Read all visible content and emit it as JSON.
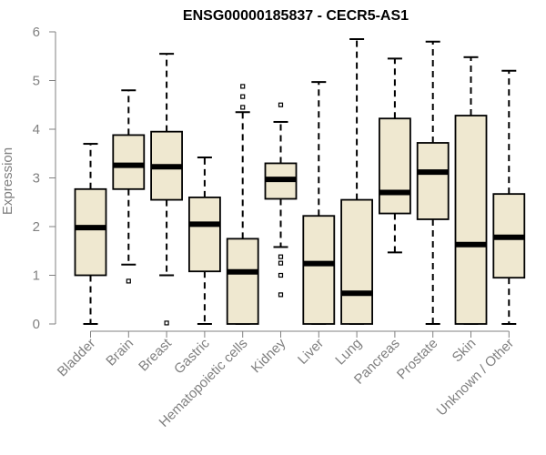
{
  "chart_data": {
    "type": "box",
    "title": "ENSG00000185837 - CECR5-AS1",
    "xlabel": "",
    "ylabel": "Expression",
    "ylim": [
      0,
      6
    ],
    "yticks": [
      0,
      1,
      2,
      3,
      4,
      5,
      6
    ],
    "box_color": "#efe8d0",
    "stroke_color": "#000000",
    "axis_color": "#808080",
    "categories": [
      "Bladder",
      "Brain",
      "Breast",
      "Gastric",
      "Hematopoietic cells",
      "Kidney",
      "Liver",
      "Lung",
      "Pancreas",
      "Prostate",
      "Skin",
      "Unknown / Other"
    ],
    "boxes": [
      {
        "name": "Bladder",
        "min": 0,
        "q1": 1.0,
        "median": 1.98,
        "q3": 2.77,
        "max": 3.7,
        "outliers": []
      },
      {
        "name": "Brain",
        "min": 1.22,
        "q1": 2.77,
        "median": 3.26,
        "q3": 3.88,
        "max": 4.8,
        "outliers": [
          0.88
        ]
      },
      {
        "name": "Breast",
        "min": 1.0,
        "q1": 2.55,
        "median": 3.23,
        "q3": 3.95,
        "max": 5.55,
        "outliers": [
          0.02
        ]
      },
      {
        "name": "Gastric",
        "min": 0,
        "q1": 1.08,
        "median": 2.05,
        "q3": 2.6,
        "max": 3.42,
        "outliers": []
      },
      {
        "name": "Hematopoietic cells",
        "min": 0,
        "q1": 0,
        "median": 1.07,
        "q3": 1.75,
        "max": 4.35,
        "outliers": [
          4.45,
          4.67,
          4.88
        ]
      },
      {
        "name": "Kidney",
        "min": 1.58,
        "q1": 2.57,
        "median": 2.97,
        "q3": 3.3,
        "max": 4.15,
        "outliers": [
          4.5,
          1.38,
          1.25,
          1.0,
          0.6
        ]
      },
      {
        "name": "Liver",
        "min": 0,
        "q1": 0,
        "median": 1.24,
        "q3": 2.22,
        "max": 4.97,
        "outliers": []
      },
      {
        "name": "Lung",
        "min": 0,
        "q1": 0,
        "median": 0.63,
        "q3": 2.55,
        "max": 5.85,
        "outliers": []
      },
      {
        "name": "Pancreas",
        "min": 1.47,
        "q1": 2.27,
        "median": 2.7,
        "q3": 4.22,
        "max": 5.45,
        "outliers": []
      },
      {
        "name": "Prostate",
        "min": 0,
        "q1": 2.15,
        "median": 3.12,
        "q3": 3.72,
        "max": 5.8,
        "outliers": []
      },
      {
        "name": "Skin",
        "min": 0,
        "q1": 0,
        "median": 1.63,
        "q3": 4.28,
        "max": 5.48,
        "outliers": []
      },
      {
        "name": "Unknown / Other",
        "min": 0,
        "q1": 0.95,
        "median": 1.78,
        "q3": 2.67,
        "max": 5.2,
        "outliers": []
      }
    ]
  }
}
